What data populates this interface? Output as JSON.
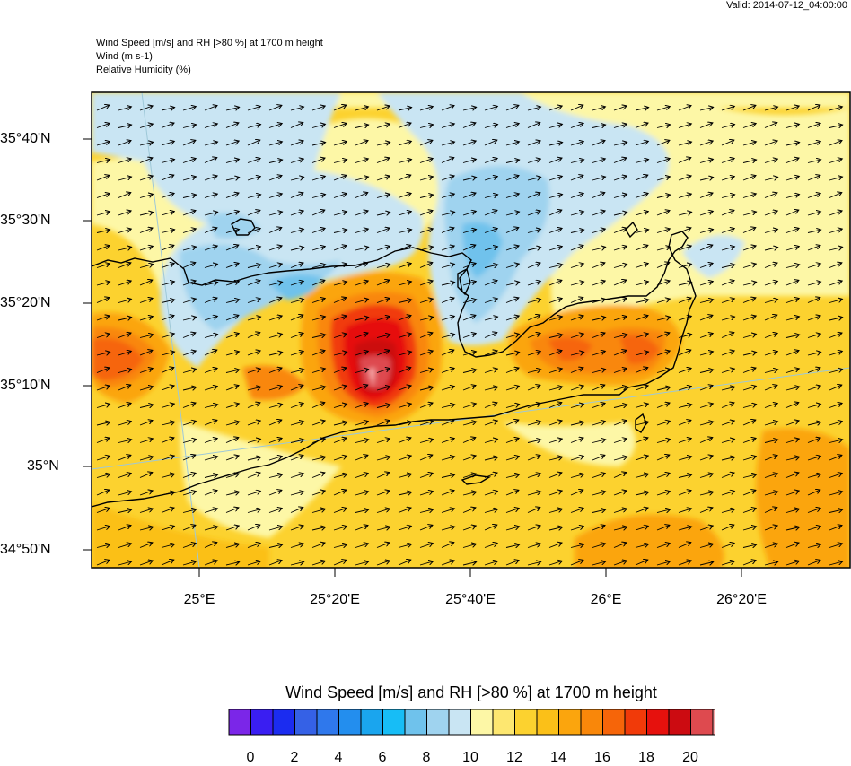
{
  "header": {
    "valid_time": "Valid: 2014-07-12_04:00:00",
    "title_lines": [
      "Wind Speed [m/s] and RH [>80 %] at 1700 m height",
      "Wind   (m s-1)",
      "Relative Humidity   (%)"
    ]
  },
  "map": {
    "lat_labels": [
      "35°40'N",
      "35°30'N",
      "35°20'N",
      "35°10'N",
      "35°N",
      "34°50'N"
    ],
    "lon_labels": [
      "25°E",
      "25°20'E",
      "25°40'E",
      "26°E",
      "26°20'E"
    ],
    "wind_direction": "toward east-north-east",
    "colors": {
      "coast": "#000000",
      "grid": "#9ec8d8"
    }
  },
  "colorbar": {
    "title": "Wind Speed [m/s] and RH [>80 %] at 1700 m height",
    "tick_labels": [
      "0",
      "2",
      "4",
      "6",
      "8",
      "10",
      "12",
      "14",
      "16",
      "18",
      "20"
    ],
    "colors": [
      "#7b26e8",
      "#3a1ef2",
      "#1b2cf0",
      "#3561e6",
      "#2f78ec",
      "#238eee",
      "#1aa5ee",
      "#17bdf6",
      "#6fc2ec",
      "#9fd3ef",
      "#c9e5f3",
      "#fdf7a6",
      "#fde770",
      "#fcd22f",
      "#fbc018",
      "#fba50d",
      "#f9870a",
      "#f66509",
      "#f13a09",
      "#e6110d",
      "#cc0b11",
      "#de4a4f",
      "#f7a7a8"
    ]
  }
}
